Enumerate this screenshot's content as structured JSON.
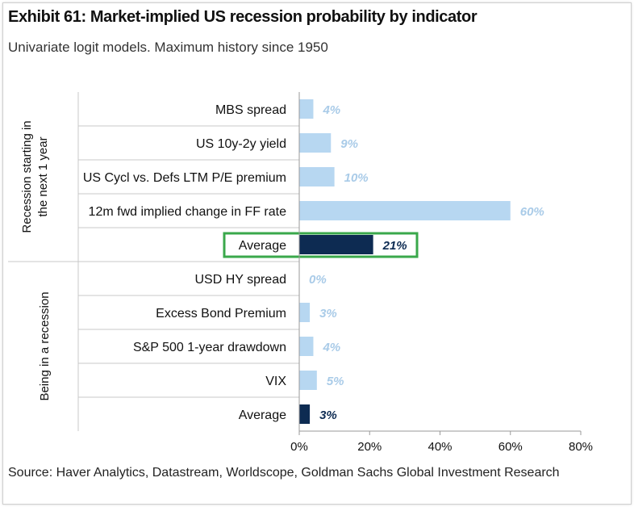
{
  "title": "Exhibit 61: Market-implied US recession probability by indicator",
  "subtitle": "Univariate logit models. Maximum history since 1950",
  "source": "Source: Haver Analytics, Datastream, Worldscope, Goldman Sachs Global Investment Research",
  "colors": {
    "bar": "#b7d7f1",
    "average_bar": "#0d2b52",
    "value_label": "#a9cbe8",
    "average_label": "#0d2b52",
    "highlight_box": "#3aa84b",
    "grid": "#c9c9c9"
  },
  "chart_data": {
    "type": "bar",
    "orientation": "horizontal",
    "xlim": [
      0,
      80
    ],
    "xticks": [
      "0%",
      "20%",
      "40%",
      "60%",
      "80%"
    ],
    "groups": [
      {
        "label": "Recession starting in the next 1 year",
        "items": [
          {
            "category": "MBS spread",
            "value": 4,
            "label": "4%",
            "average": false
          },
          {
            "category": "US 10y-2y yield",
            "value": 9,
            "label": "9%",
            "average": false
          },
          {
            "category": "US Cycl vs. Defs LTM P/E premium",
            "value": 10,
            "label": "10%",
            "average": false
          },
          {
            "category": "12m fwd implied change in FF rate",
            "value": 60,
            "label": "60%",
            "average": false
          },
          {
            "category": "Average",
            "value": 21,
            "label": "21%",
            "average": true,
            "highlighted": true
          }
        ]
      },
      {
        "label": "Being in a recession",
        "items": [
          {
            "category": "USD HY spread",
            "value": 0,
            "label": "0%",
            "average": false
          },
          {
            "category": "Excess Bond Premium",
            "value": 3,
            "label": "3%",
            "average": false
          },
          {
            "category": "S&P 500 1-year drawdown",
            "value": 4,
            "label": "4%",
            "average": false
          },
          {
            "category": "VIX",
            "value": 5,
            "label": "5%",
            "average": false
          },
          {
            "category": "Average",
            "value": 3,
            "label": "3%",
            "average": true,
            "highlighted": false
          }
        ]
      }
    ],
    "grid": false,
    "legend": "none"
  }
}
